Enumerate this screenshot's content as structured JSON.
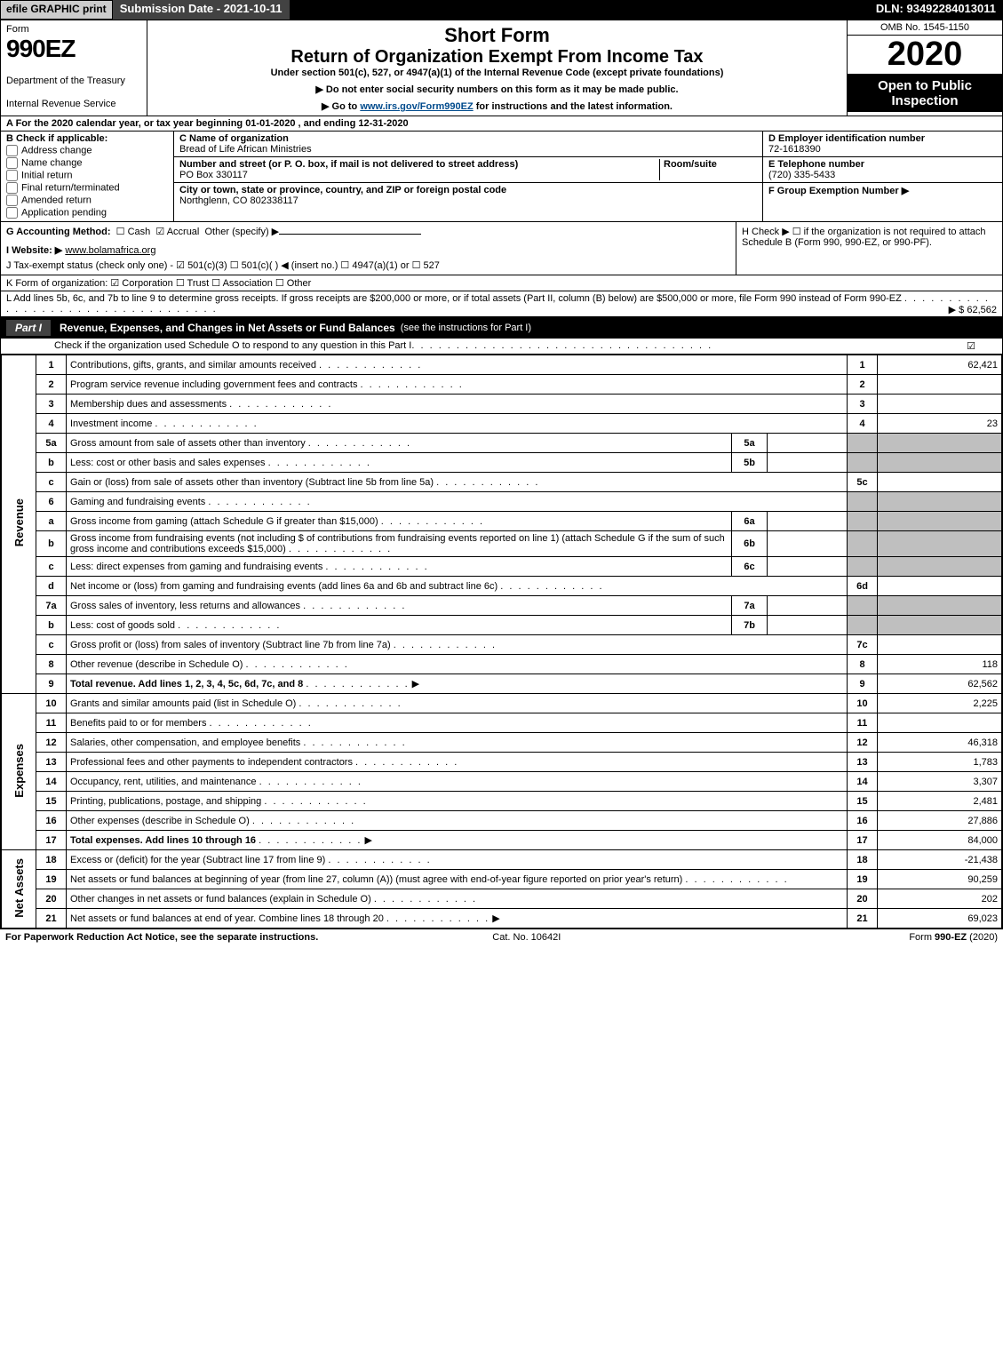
{
  "topbar": {
    "efile": "efile GRAPHIC print",
    "submission": "Submission Date - 2021-10-11",
    "dln": "DLN: 93492284013011"
  },
  "header": {
    "form_label": "Form",
    "form_code": "990EZ",
    "dept1": "Department of the Treasury",
    "dept2": "Internal Revenue Service",
    "title1": "Short Form",
    "title2": "Return of Organization Exempt From Income Tax",
    "subtitle": "Under section 501(c), 527, or 4947(a)(1) of the Internal Revenue Code (except private foundations)",
    "note1": "▶ Do not enter social security numbers on this form as it may be made public.",
    "note2_pre": "▶ Go to ",
    "note2_link": "www.irs.gov/Form990EZ",
    "note2_post": " for instructions and the latest information.",
    "omb": "OMB No. 1545-1150",
    "year": "2020",
    "open": "Open to Public Inspection"
  },
  "lineA": "A For the 2020 calendar year, or tax year beginning 01-01-2020 , and ending 12-31-2020",
  "boxB": {
    "label": "B  Check if applicable:",
    "opts": [
      "Address change",
      "Name change",
      "Initial return",
      "Final return/terminated",
      "Amended return",
      "Application pending"
    ]
  },
  "boxC": {
    "label": "C Name of organization",
    "name": "Bread of Life African Ministries",
    "addr_label": "Number and street (or P. O. box, if mail is not delivered to street address)",
    "addr": "PO Box 330117",
    "room_label": "Room/suite",
    "city_label": "City or town, state or province, country, and ZIP or foreign postal code",
    "city": "Northglenn, CO  802338117"
  },
  "boxD": {
    "label": "D Employer identification number",
    "val": "72-1618390"
  },
  "boxE": {
    "label": "E Telephone number",
    "val": "(720) 335-5433"
  },
  "boxF": {
    "label": "F Group Exemption Number  ▶",
    "val": ""
  },
  "lineG": {
    "label": "G Accounting Method:",
    "cash": "Cash",
    "accrual": "Accrual",
    "other": "Other (specify) ▶"
  },
  "lineH": "H  Check ▶  ☐  if the organization is not required to attach Schedule B (Form 990, 990-EZ, or 990-PF).",
  "lineI": {
    "label": "I Website: ▶",
    "val": "www.bolamafrica.org"
  },
  "lineJ": "J Tax-exempt status (check only one) -  ☑ 501(c)(3)  ☐ 501(c)(  ) ◀ (insert no.)  ☐ 4947(a)(1) or  ☐ 527",
  "lineK": "K Form of organization:   ☑ Corporation   ☐ Trust   ☐ Association   ☐ Other",
  "lineL": {
    "text": "L Add lines 5b, 6c, and 7b to line 9 to determine gross receipts. If gross receipts are $200,000 or more, or if total assets (Part II, column (B) below) are $500,000 or more, file Form 990 instead of Form 990-EZ",
    "amount": "▶ $ 62,562"
  },
  "part1": {
    "label": "Part I",
    "title": "Revenue, Expenses, and Changes in Net Assets or Fund Balances",
    "title_note": "(see the instructions for Part I)",
    "check_note": "Check if the organization used Schedule O to respond to any question in this Part I",
    "rot_rev": "Revenue",
    "rot_exp": "Expenses",
    "rot_na": "Net Assets"
  },
  "rows": [
    {
      "n": "1",
      "desc": "Contributions, gifts, grants, and similar amounts received",
      "r": "1",
      "v": "62,421"
    },
    {
      "n": "2",
      "desc": "Program service revenue including government fees and contracts",
      "r": "2",
      "v": ""
    },
    {
      "n": "3",
      "desc": "Membership dues and assessments",
      "r": "3",
      "v": ""
    },
    {
      "n": "4",
      "desc": "Investment income",
      "r": "4",
      "v": "23"
    },
    {
      "n": "5a",
      "desc": "Gross amount from sale of assets other than inventory",
      "sub": "5a",
      "subv": ""
    },
    {
      "n": "b",
      "desc": "Less: cost or other basis and sales expenses",
      "sub": "5b",
      "subv": ""
    },
    {
      "n": "c",
      "desc": "Gain or (loss) from sale of assets other than inventory (Subtract line 5b from line 5a)",
      "r": "5c",
      "v": ""
    },
    {
      "n": "6",
      "desc": "Gaming and fundraising events"
    },
    {
      "n": "a",
      "desc": "Gross income from gaming (attach Schedule G if greater than $15,000)",
      "sub": "6a",
      "subv": ""
    },
    {
      "n": "b",
      "desc": "Gross income from fundraising events (not including $                    of contributions from fundraising events reported on line 1) (attach Schedule G if the sum of such gross income and contributions exceeds $15,000)",
      "sub": "6b",
      "subv": ""
    },
    {
      "n": "c",
      "desc": "Less: direct expenses from gaming and fundraising events",
      "sub": "6c",
      "subv": ""
    },
    {
      "n": "d",
      "desc": "Net income or (loss) from gaming and fundraising events (add lines 6a and 6b and subtract line 6c)",
      "r": "6d",
      "v": ""
    },
    {
      "n": "7a",
      "desc": "Gross sales of inventory, less returns and allowances",
      "sub": "7a",
      "subv": ""
    },
    {
      "n": "b",
      "desc": "Less: cost of goods sold",
      "sub": "7b",
      "subv": ""
    },
    {
      "n": "c",
      "desc": "Gross profit or (loss) from sales of inventory (Subtract line 7b from line 7a)",
      "r": "7c",
      "v": ""
    },
    {
      "n": "8",
      "desc": "Other revenue (describe in Schedule O)",
      "r": "8",
      "v": "118"
    },
    {
      "n": "9",
      "desc": "Total revenue. Add lines 1, 2, 3, 4, 5c, 6d, 7c, and 8",
      "r": "9",
      "v": "62,562",
      "bold": true,
      "arrow": true
    }
  ],
  "rows_exp": [
    {
      "n": "10",
      "desc": "Grants and similar amounts paid (list in Schedule O)",
      "r": "10",
      "v": "2,225"
    },
    {
      "n": "11",
      "desc": "Benefits paid to or for members",
      "r": "11",
      "v": ""
    },
    {
      "n": "12",
      "desc": "Salaries, other compensation, and employee benefits",
      "r": "12",
      "v": "46,318"
    },
    {
      "n": "13",
      "desc": "Professional fees and other payments to independent contractors",
      "r": "13",
      "v": "1,783"
    },
    {
      "n": "14",
      "desc": "Occupancy, rent, utilities, and maintenance",
      "r": "14",
      "v": "3,307"
    },
    {
      "n": "15",
      "desc": "Printing, publications, postage, and shipping",
      "r": "15",
      "v": "2,481"
    },
    {
      "n": "16",
      "desc": "Other expenses (describe in Schedule O)",
      "r": "16",
      "v": "27,886"
    },
    {
      "n": "17",
      "desc": "Total expenses. Add lines 10 through 16",
      "r": "17",
      "v": "84,000",
      "bold": true,
      "arrow": true
    }
  ],
  "rows_na": [
    {
      "n": "18",
      "desc": "Excess or (deficit) for the year (Subtract line 17 from line 9)",
      "r": "18",
      "v": "-21,438"
    },
    {
      "n": "19",
      "desc": "Net assets or fund balances at beginning of year (from line 27, column (A)) (must agree with end-of-year figure reported on prior year's return)",
      "r": "19",
      "v": "90,259"
    },
    {
      "n": "20",
      "desc": "Other changes in net assets or fund balances (explain in Schedule O)",
      "r": "20",
      "v": "202"
    },
    {
      "n": "21",
      "desc": "Net assets or fund balances at end of year. Combine lines 18 through 20",
      "r": "21",
      "v": "69,023",
      "arrow": true
    }
  ],
  "footer": {
    "left": "For Paperwork Reduction Act Notice, see the separate instructions.",
    "mid": "Cat. No. 10642I",
    "right": "Form 990-EZ (2020)"
  }
}
